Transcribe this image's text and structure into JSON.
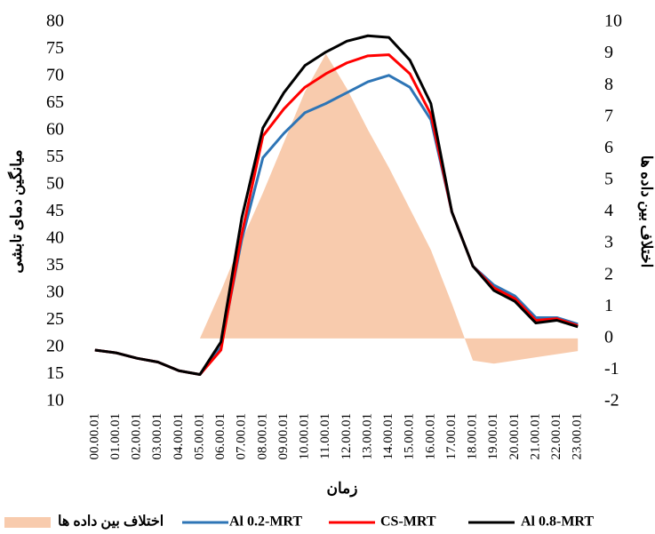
{
  "chart_data": {
    "type": "line",
    "x_label": "زمان",
    "y_label": "میانگین دمای تابشی",
    "y2_label": "اختلاف بین داده ها",
    "categories": [
      "00.00.01",
      "01.00.01",
      "02.00.01",
      "03.00.01",
      "04.00.01",
      "05.00.01",
      "06.00.01",
      "07.00.01",
      "08.00.01",
      "09.00.01",
      "10.00.01",
      "11.00.01",
      "12.00.01",
      "13.00.01",
      "14.00.01",
      "15.00.01",
      "16.00.01",
      "17.00.01",
      "18.00.01",
      "19.00.01",
      "20.00.01",
      "21.00.01",
      "22.00.01",
      "23.00.01"
    ],
    "ylim": [
      10,
      80
    ],
    "yticks": [
      10,
      15,
      20,
      25,
      30,
      35,
      40,
      45,
      50,
      55,
      60,
      65,
      70,
      75,
      80
    ],
    "y2lim": [
      -2,
      10
    ],
    "y2ticks": [
      -2,
      -1,
      0,
      1,
      2,
      3,
      4,
      5,
      6,
      7,
      8,
      9,
      10
    ],
    "series": [
      {
        "name": "اختلاف بین داده ها",
        "type": "area",
        "axis": "y2",
        "color": "#f8cbad",
        "values": [
          0,
          0,
          0,
          0,
          0,
          0,
          1.5,
          3.1,
          4.6,
          6.2,
          7.8,
          9,
          7.9,
          6.6,
          5.4,
          4.1,
          2.8,
          1.1,
          -0.7,
          -0.8,
          -0.7,
          -0.6,
          -0.5,
          -0.4
        ]
      },
      {
        "name": "Al 0.2-MRT",
        "type": "line",
        "color": "#2e75b6",
        "values": [
          19.5,
          19,
          18,
          17.3,
          15.7,
          15,
          20,
          40,
          55,
          59.5,
          63.3,
          65,
          67,
          69,
          70.2,
          68,
          62,
          45,
          35,
          31.5,
          29.5,
          25.5,
          25.5,
          24.3
        ]
      },
      {
        "name": "CS-MRT",
        "type": "line",
        "color": "#ff0000",
        "values": [
          19.5,
          19,
          18,
          17.3,
          15.7,
          15,
          19.5,
          41,
          59,
          64,
          68,
          70.5,
          72.5,
          73.8,
          74,
          70.5,
          63,
          45,
          35,
          31,
          29,
          25,
          25.3,
          24
        ]
      },
      {
        "name": "Al 0.8-MRT",
        "type": "line",
        "color": "#000000",
        "values": [
          19.5,
          19,
          18,
          17.3,
          15.7,
          15,
          21,
          44,
          60.5,
          67,
          72,
          74.5,
          76.5,
          77.5,
          77.2,
          73,
          65,
          45,
          35,
          30.5,
          28.5,
          24.5,
          25,
          23.8
        ]
      }
    ]
  }
}
